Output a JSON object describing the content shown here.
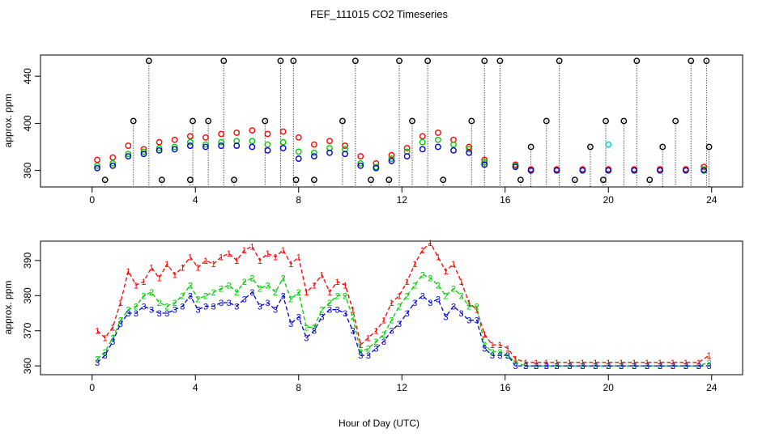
{
  "chart_data": [
    {
      "type": "scatter",
      "title": "FEF_111015  CO2 Timeseries",
      "xlabel": "",
      "ylabel": "approx. ppm",
      "xlim": [
        -2.0,
        25.2
      ],
      "ylim": [
        346,
        458
      ],
      "xticks": [
        0,
        4,
        8,
        12,
        16,
        20,
        24
      ],
      "yticks": [
        360,
        400,
        440
      ],
      "markers": "open circles with vertical dotted drop lines from the black series",
      "series": [
        {
          "name": "series-1 (red)",
          "color": "#ff0000",
          "x": [
            0.2,
            0.8,
            1.4,
            2.0,
            2.6,
            3.2,
            3.8,
            4.4,
            5.0,
            5.6,
            6.2,
            6.8,
            7.4,
            8.0,
            8.6,
            9.2,
            9.8,
            10.4,
            11.0,
            11.6,
            12.2,
            12.8,
            13.4,
            14.0,
            14.6,
            15.2,
            16.4,
            17.0,
            18.0,
            19.0,
            20.0,
            21.0,
            22.0,
            23.0,
            23.7
          ],
          "y": [
            369,
            371,
            381,
            378,
            384,
            386,
            389,
            388,
            391,
            392,
            394,
            391,
            393,
            388,
            382,
            385,
            381,
            372,
            366,
            373,
            379,
            389,
            392,
            386,
            380,
            369,
            365,
            361,
            361,
            361,
            361,
            361,
            361,
            361,
            363
          ]
        },
        {
          "name": "series-2 (green)",
          "color": "#00cc00",
          "x": [
            0.2,
            0.8,
            1.4,
            2.0,
            2.6,
            3.2,
            3.8,
            4.4,
            5.0,
            5.6,
            6.2,
            6.8,
            7.4,
            8.0,
            8.6,
            9.2,
            9.8,
            10.4,
            11.0,
            11.6,
            12.2,
            12.8,
            13.4,
            14.0,
            14.6,
            15.2,
            16.4,
            17.0,
            18.0,
            19.0,
            20.0,
            21.0,
            22.0,
            23.0,
            23.7
          ],
          "y": [
            364,
            366,
            374,
            376,
            379,
            380,
            384,
            382,
            384,
            385,
            385,
            382,
            384,
            376,
            375,
            379,
            378,
            366,
            363,
            370,
            376,
            384,
            386,
            382,
            378,
            367,
            364,
            360,
            360,
            360,
            360,
            360,
            360,
            360,
            361
          ]
        },
        {
          "name": "series-3 (blue)",
          "color": "#0000cc",
          "x": [
            0.2,
            0.8,
            1.4,
            2.0,
            2.6,
            3.2,
            3.8,
            4.4,
            5.0,
            5.6,
            6.2,
            6.8,
            7.4,
            8.0,
            8.6,
            9.2,
            9.8,
            10.4,
            11.0,
            11.6,
            12.2,
            12.8,
            13.4,
            14.0,
            14.6,
            15.2,
            16.4,
            17.0,
            18.0,
            19.0,
            20.0,
            21.0,
            22.0,
            23.0,
            23.7
          ],
          "y": [
            362,
            364,
            372,
            374,
            377,
            378,
            381,
            380,
            381,
            381,
            380,
            377,
            379,
            370,
            372,
            375,
            374,
            364,
            362,
            368,
            372,
            378,
            380,
            377,
            375,
            365,
            363,
            360,
            360,
            360,
            360,
            360,
            360,
            360,
            360
          ]
        },
        {
          "name": "series-0 (black)",
          "color": "#000000",
          "x": [
            0.5,
            1.6,
            2.2,
            2.7,
            3.8,
            3.9,
            4.5,
            5.1,
            5.5,
            6.7,
            7.3,
            7.8,
            7.9,
            8.6,
            9.7,
            10.2,
            10.8,
            11.5,
            11.9,
            12.4,
            13.0,
            13.6,
            14.7,
            15.2,
            15.8,
            16.6,
            17.0,
            17.6,
            18.1,
            18.7,
            19.3,
            19.8,
            19.9,
            20.6,
            21.1,
            21.6,
            22.1,
            22.6,
            23.2,
            23.8,
            23.9
          ],
          "y": [
            352,
            402,
            453,
            352,
            352,
            402,
            402,
            453,
            352,
            402,
            453,
            453,
            352,
            352,
            402,
            453,
            352,
            352,
            453,
            402,
            453,
            352,
            402,
            453,
            453,
            352,
            380,
            402,
            453,
            352,
            380,
            352,
            402,
            402,
            453,
            352,
            380,
            402,
            453,
            453,
            380
          ]
        },
        {
          "name": "series-4 (cyan)",
          "color": "#00cccc",
          "x": [
            20.0
          ],
          "y": [
            382
          ]
        }
      ]
    },
    {
      "type": "scatter",
      "title": "",
      "xlabel": "Hour of Day (UTC)",
      "ylabel": "approx. ppm",
      "xlim": [
        -2.0,
        25.2
      ],
      "ylim": [
        357.5,
        395.5
      ],
      "xticks": [
        0,
        4,
        8,
        12,
        16,
        20,
        24
      ],
      "yticks": [
        360,
        370,
        380,
        390
      ],
      "markers": "digit symbols 1, 2, 3 joined by dashed lines",
      "series": [
        {
          "name": "1",
          "color": "#ff0000",
          "symbol": "1",
          "x": [
            0.2,
            0.5,
            0.8,
            1.1,
            1.4,
            1.7,
            2.0,
            2.3,
            2.6,
            2.9,
            3.2,
            3.5,
            3.8,
            4.1,
            4.4,
            4.7,
            5.0,
            5.3,
            5.6,
            5.9,
            6.2,
            6.5,
            6.8,
            7.1,
            7.4,
            7.7,
            8.0,
            8.3,
            8.6,
            8.9,
            9.2,
            9.5,
            9.8,
            10.1,
            10.4,
            10.7,
            11.0,
            11.3,
            11.6,
            11.9,
            12.2,
            12.5,
            12.8,
            13.1,
            13.4,
            13.7,
            14.0,
            14.3,
            14.6,
            14.9,
            15.2,
            15.5,
            15.8,
            16.1,
            16.4,
            16.8,
            17.2,
            17.6,
            18.0,
            18.5,
            19.0,
            19.5,
            20.0,
            20.5,
            21.0,
            21.5,
            22.0,
            22.5,
            23.0,
            23.5,
            23.9
          ],
          "y": [
            370,
            368,
            371,
            378,
            387,
            383,
            384,
            388,
            385,
            389,
            386,
            388,
            391,
            388,
            390,
            389,
            391,
            392,
            390,
            393,
            394,
            390,
            392,
            391,
            393,
            389,
            391,
            381,
            383,
            386,
            381,
            384,
            383,
            376,
            366,
            368,
            370,
            373,
            378,
            380,
            384,
            389,
            393,
            395,
            391,
            387,
            389,
            384,
            378,
            376,
            369,
            366,
            366,
            365,
            362,
            361,
            361,
            361,
            361,
            361,
            361,
            361,
            361,
            361,
            361,
            361,
            361,
            361,
            361,
            361,
            363
          ]
        },
        {
          "name": "2",
          "color": "#00cc00",
          "symbol": "2",
          "x": [
            0.2,
            0.5,
            0.8,
            1.1,
            1.4,
            1.7,
            2.0,
            2.3,
            2.6,
            2.9,
            3.2,
            3.5,
            3.8,
            4.1,
            4.4,
            4.7,
            5.0,
            5.3,
            5.6,
            5.9,
            6.2,
            6.5,
            6.8,
            7.1,
            7.4,
            7.7,
            8.0,
            8.3,
            8.6,
            8.9,
            9.2,
            9.5,
            9.8,
            10.1,
            10.4,
            10.7,
            11.0,
            11.3,
            11.6,
            11.9,
            12.2,
            12.5,
            12.8,
            13.1,
            13.4,
            13.7,
            14.0,
            14.3,
            14.6,
            14.9,
            15.2,
            15.5,
            15.8,
            16.1,
            16.4,
            16.8,
            17.2,
            17.6,
            18.0,
            18.5,
            19.0,
            19.5,
            20.0,
            20.5,
            21.0,
            21.5,
            22.0,
            22.5,
            23.0,
            23.5,
            23.9
          ],
          "y": [
            362,
            364,
            368,
            373,
            376,
            377,
            380,
            381,
            378,
            377,
            378,
            380,
            383,
            379,
            380,
            381,
            382,
            383,
            381,
            384,
            385,
            382,
            383,
            381,
            385,
            379,
            381,
            371,
            371,
            376,
            378,
            380,
            380,
            374,
            364,
            365,
            367,
            369,
            373,
            377,
            380,
            383,
            386,
            385,
            383,
            380,
            382,
            380,
            377,
            377,
            366,
            364,
            364,
            363,
            361,
            360,
            360,
            360,
            360,
            360,
            360,
            360,
            360,
            360,
            360,
            360,
            360,
            360,
            360,
            360,
            361
          ]
        },
        {
          "name": "3",
          "color": "#0000cc",
          "symbol": "3",
          "x": [
            0.2,
            0.5,
            0.8,
            1.1,
            1.4,
            1.7,
            2.0,
            2.3,
            2.6,
            2.9,
            3.2,
            3.5,
            3.8,
            4.1,
            4.4,
            4.7,
            5.0,
            5.3,
            5.6,
            5.9,
            6.2,
            6.5,
            6.8,
            7.1,
            7.4,
            7.7,
            8.0,
            8.3,
            8.6,
            8.9,
            9.2,
            9.5,
            9.8,
            10.1,
            10.4,
            10.7,
            11.0,
            11.3,
            11.6,
            11.9,
            12.2,
            12.5,
            12.8,
            13.1,
            13.4,
            13.7,
            14.0,
            14.3,
            14.6,
            14.9,
            15.2,
            15.5,
            15.8,
            16.1,
            16.4,
            16.8,
            17.2,
            17.6,
            18.0,
            18.5,
            19.0,
            19.5,
            20.0,
            20.5,
            21.0,
            21.5,
            22.0,
            22.5,
            23.0,
            23.5,
            23.9
          ],
          "y": [
            361,
            363,
            367,
            372,
            375,
            375,
            377,
            376,
            375,
            375,
            376,
            377,
            380,
            376,
            377,
            377,
            378,
            378,
            377,
            379,
            381,
            377,
            378,
            376,
            380,
            372,
            374,
            368,
            370,
            374,
            376,
            376,
            375,
            370,
            363,
            363,
            365,
            367,
            370,
            372,
            375,
            378,
            380,
            378,
            379,
            374,
            377,
            375,
            373,
            373,
            365,
            363,
            363,
            363,
            360,
            360,
            360,
            360,
            360,
            360,
            360,
            360,
            360,
            360,
            360,
            360,
            360,
            360,
            360,
            360,
            360
          ]
        }
      ]
    }
  ]
}
